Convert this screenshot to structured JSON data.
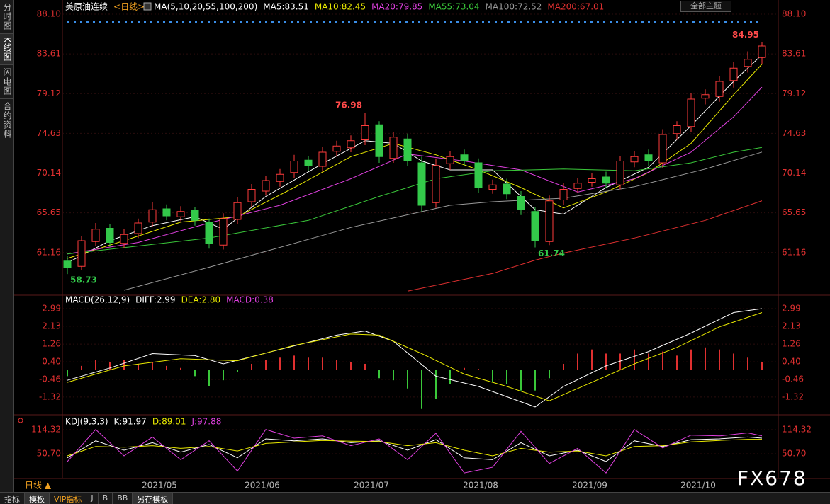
{
  "ui": {
    "sidebar": [
      "分时图",
      "K线图",
      "闪电图",
      "合约资料"
    ],
    "theme_button": "全部主题",
    "period_button": "日线 ▲",
    "bottom_tabs": [
      "指标",
      "模板",
      "VIP指标",
      "J",
      "B",
      "BB",
      "另存模板"
    ],
    "watermark": "FX678"
  },
  "chart_data": [
    {
      "type": "candlestick",
      "title": "美原油连续",
      "period": "<日线>",
      "indicator": "MA(5,10,20,55,100,200)",
      "open": [
        60.2,
        59.6,
        62.4,
        63.9,
        62.2,
        63.3,
        64.6,
        66.1,
        65.2,
        65.9,
        64.6,
        62.0,
        64.9,
        66.9,
        68.1,
        69.2,
        70.2,
        71.6,
        70.9,
        72.6,
        73.0,
        73.9,
        75.6,
        71.8,
        74.0,
        71.3,
        66.8,
        71.2,
        72.2,
        71.3,
        68.3,
        68.9,
        67.5,
        65.8,
        62.4,
        67.1,
        68.4,
        69.1,
        69.7,
        68.8,
        71.4,
        72.2,
        71.3,
        74.6,
        75.4,
        78.6,
        78.8,
        80.6,
        82.2,
        83.2
      ],
      "high": [
        60.8,
        63.0,
        64.5,
        64.4,
        63.8,
        65.0,
        66.9,
        66.6,
        66.4,
        66.3,
        65.0,
        65.6,
        67.4,
        68.9,
        69.8,
        70.6,
        72.2,
        72.1,
        73.1,
        73.8,
        74.4,
        76.98,
        76.0,
        74.8,
        74.6,
        72.0,
        71.8,
        72.6,
        72.8,
        71.8,
        69.4,
        69.5,
        68.1,
        66.3,
        67.6,
        69.0,
        69.6,
        70.1,
        70.3,
        72.1,
        72.6,
        72.8,
        75.1,
        76.0,
        79.2,
        79.6,
        81.1,
        82.7,
        83.9,
        84.95
      ],
      "low": [
        58.73,
        59.2,
        61.9,
        61.8,
        61.7,
        62.8,
        64.1,
        64.8,
        64.7,
        64.2,
        61.6,
        61.5,
        64.4,
        66.3,
        67.6,
        68.6,
        69.6,
        70.4,
        70.3,
        72.0,
        72.5,
        73.3,
        71.3,
        71.3,
        70.9,
        65.8,
        66.2,
        70.5,
        71.0,
        67.9,
        67.8,
        67.2,
        65.4,
        61.74,
        62.0,
        66.5,
        67.9,
        68.6,
        68.4,
        68.3,
        70.8,
        70.9,
        70.7,
        73.9,
        74.8,
        77.9,
        78.2,
        79.8,
        81.5,
        82.5
      ],
      "close": [
        59.5,
        62.5,
        63.8,
        62.3,
        63.2,
        64.5,
        66.0,
        65.3,
        65.8,
        64.8,
        62.2,
        65.0,
        66.8,
        68.3,
        69.3,
        70.0,
        71.5,
        71.0,
        72.5,
        73.2,
        73.8,
        75.5,
        72.0,
        74.2,
        71.5,
        66.5,
        71.0,
        72.0,
        71.5,
        68.5,
        68.8,
        67.8,
        66.0,
        62.5,
        67.0,
        68.3,
        69.0,
        69.5,
        69.0,
        71.5,
        72.0,
        71.5,
        74.5,
        75.5,
        78.5,
        79.0,
        80.5,
        82.0,
        83.0,
        84.5
      ],
      "up_color": "#ff3b3b",
      "down_color": "#33c94a",
      "xlim": [
        0,
        49
      ],
      "xticks": [
        {
          "value": 6.5,
          "label": "2021/05"
        },
        {
          "value": 13.75,
          "label": "2021/06"
        },
        {
          "value": 21.45,
          "label": "2021/07"
        },
        {
          "value": 29.15,
          "label": "2021/08"
        },
        {
          "value": 36.85,
          "label": "2021/09"
        },
        {
          "value": 44.5,
          "label": "2021/10"
        }
      ],
      "ylim": [
        56.5,
        89.3
      ],
      "yticks": [
        {
          "value": 88.1,
          "label": "88.10"
        },
        83.61,
        79.12,
        74.63,
        70.14,
        65.65,
        61.16
      ],
      "high_labels": [
        84.95,
        76.98
      ],
      "low_labels": [
        61.74,
        58.73
      ],
      "series": [
        {
          "name": "MA5:83.51",
          "color": "#ffffff",
          "x": [
            0,
            3,
            6,
            9,
            11,
            14,
            18,
            21,
            23,
            25,
            27,
            30,
            33,
            35,
            38,
            41,
            44,
            47,
            49
          ],
          "values": [
            60.0,
            62.5,
            64.2,
            65.2,
            63.8,
            67.5,
            71.2,
            73.8,
            73.5,
            71.5,
            70.5,
            70.5,
            66.0,
            65.5,
            68.5,
            70.8,
            75.5,
            80.5,
            83.51
          ]
        },
        {
          "name": "MA10:82.45",
          "color": "#e8e800",
          "x": [
            0,
            4,
            8,
            12,
            16,
            20,
            23,
            26,
            29,
            32,
            35,
            38,
            41,
            44,
            47,
            49
          ],
          "values": [
            60.5,
            62.5,
            64.6,
            65.2,
            68.5,
            72.0,
            73.5,
            72.2,
            70.5,
            68.5,
            66.2,
            68.0,
            70.2,
            73.5,
            79.0,
            82.45
          ]
        },
        {
          "name": "MA20:79.85",
          "color": "#e040e0",
          "x": [
            0,
            5,
            10,
            15,
            20,
            24,
            28,
            32,
            36,
            40,
            44,
            47,
            49
          ],
          "values": [
            61.0,
            62.3,
            64.5,
            66.5,
            69.5,
            72.3,
            71.5,
            70.5,
            68.0,
            69.5,
            72.5,
            76.5,
            79.85
          ]
        },
        {
          "name": "MA55:73.04",
          "color": "#3ac83a",
          "x": [
            0,
            10,
            17,
            22,
            26,
            30,
            35,
            40,
            44,
            47,
            49
          ],
          "values": [
            61.0,
            62.8,
            64.8,
            67.5,
            69.5,
            70.4,
            70.6,
            70.4,
            71.3,
            72.5,
            73.04
          ]
        },
        {
          "name": "MA100:72.52",
          "color": "#9a9a9a",
          "x": [
            4,
            10,
            20,
            27,
            30,
            35,
            40,
            45,
            49
          ],
          "values": [
            56.9,
            59.5,
            64.0,
            66.5,
            66.9,
            67.3,
            68.6,
            70.6,
            72.52
          ]
        },
        {
          "name": "MA200:67.01",
          "color": "#e03030",
          "x": [
            24,
            30,
            33,
            35,
            40,
            45,
            49
          ],
          "values": [
            56.8,
            58.8,
            60.3,
            61.1,
            62.8,
            64.8,
            67.01
          ]
        }
      ]
    },
    {
      "type": "macd",
      "title": "MACD(26,12,9)",
      "ylim": [
        -2.15,
        3.61
      ],
      "yticks": [
        2.99,
        2.13,
        1.26,
        {
          "value": 0.4,
          "label": "0.40"
        },
        -0.46,
        -1.32
      ],
      "histogram": {
        "name": "MACD:0.38",
        "color": "#e040e0",
        "up_color": "#e03030",
        "down_color": "#3ac83a",
        "values": [
          -0.3,
          0.2,
          0.5,
          0.4,
          0.5,
          0.3,
          0.4,
          0.2,
          0.1,
          -0.3,
          -0.8,
          -0.5,
          -0.1,
          0.3,
          0.5,
          0.6,
          0.7,
          0.6,
          0.6,
          0.5,
          0.4,
          0.3,
          -0.4,
          -0.5,
          -0.9,
          -1.9,
          -1.4,
          -0.7,
          0.1,
          0.05,
          -0.6,
          -0.7,
          -1.0,
          -1.0,
          -0.4,
          0.3,
          0.8,
          1.0,
          0.8,
          0.8,
          1.0,
          0.8,
          0.9,
          0.7,
          1.0,
          1.1,
          1.0,
          0.8,
          0.6,
          0.38
        ]
      },
      "series": [
        {
          "name": "DIFF:2.99",
          "color": "#ffffff",
          "x": [
            0,
            3,
            6,
            9,
            11,
            15,
            19,
            21,
            23,
            26,
            29,
            33,
            35,
            38,
            41,
            44,
            47,
            49
          ],
          "values": [
            -0.5,
            0.1,
            0.8,
            0.7,
            0.3,
            1.0,
            1.7,
            1.9,
            1.4,
            -0.3,
            -0.8,
            -1.8,
            -0.8,
            0.2,
            0.9,
            1.8,
            2.8,
            2.99
          ]
        },
        {
          "name": "DEA:2.80",
          "color": "#e8e800",
          "x": [
            0,
            4,
            8,
            12,
            16,
            20,
            22,
            25,
            28,
            31,
            34,
            37,
            40,
            43,
            46,
            49
          ],
          "values": [
            -0.6,
            0.2,
            0.55,
            0.45,
            1.2,
            1.75,
            1.7,
            0.8,
            -0.2,
            -0.8,
            -1.5,
            -0.6,
            0.3,
            1.1,
            2.1,
            2.8
          ]
        }
      ]
    },
    {
      "type": "kdj",
      "title": "KDJ(9,3,3)",
      "ylim": [
        -13,
        150
      ],
      "yticks": [
        114.32,
        {
          "value": 50.7,
          "label": "50.70"
        }
      ],
      "series": [
        {
          "name": "K:91.97",
          "color": "#ffffff",
          "x": [
            0,
            2,
            4,
            6,
            8,
            10,
            12,
            14,
            16,
            18,
            20,
            22,
            24,
            26,
            28,
            30,
            32,
            34,
            36,
            38,
            40,
            42,
            44,
            46,
            48,
            49
          ],
          "values": [
            40,
            85,
            60,
            80,
            55,
            75,
            40,
            90,
            85,
            90,
            80,
            85,
            60,
            88,
            40,
            35,
            80,
            45,
            60,
            30,
            85,
            70,
            88,
            90,
            95,
            91.97
          ]
        },
        {
          "name": "D:89.01",
          "color": "#e8e800",
          "x": [
            0,
            2,
            4,
            6,
            8,
            10,
            12,
            14,
            16,
            18,
            20,
            22,
            24,
            26,
            28,
            30,
            32,
            34,
            36,
            38,
            40,
            42,
            44,
            46,
            48,
            49
          ],
          "values": [
            45,
            70,
            68,
            72,
            65,
            70,
            58,
            78,
            82,
            86,
            84,
            83,
            72,
            80,
            60,
            45,
            65,
            55,
            58,
            45,
            70,
            72,
            82,
            86,
            89,
            89.01
          ]
        },
        {
          "name": "J:97.88",
          "color": "#e040e0",
          "x": [
            0,
            2,
            4,
            6,
            8,
            10,
            12,
            14,
            16,
            18,
            20,
            22,
            24,
            26,
            28,
            30,
            32,
            34,
            36,
            38,
            40,
            42,
            44,
            46,
            48,
            49
          ],
          "values": [
            30,
            115,
            45,
            95,
            35,
            85,
            5,
            115,
            92,
            98,
            72,
            90,
            35,
            105,
            0,
            15,
            110,
            25,
            65,
            0,
            115,
            66,
            100,
            98,
            106,
            97.88
          ]
        }
      ]
    }
  ]
}
